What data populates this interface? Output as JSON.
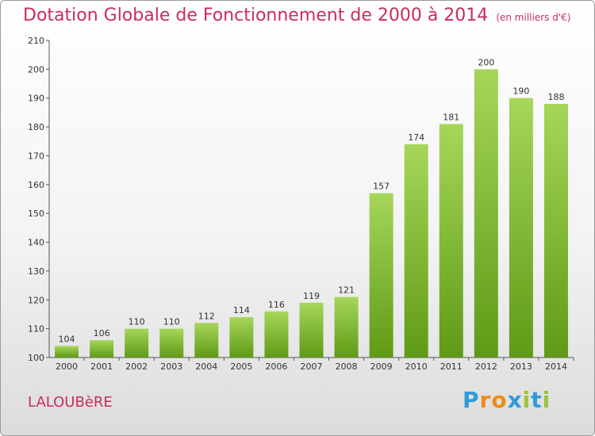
{
  "header": {
    "title": "Dotation Globale de Fonctionnement de 2000 à 2014",
    "unit": "(en milliers d'€)"
  },
  "footer": {
    "commune": "LALOUBèRE",
    "brand": "Proxiti"
  },
  "colors": {
    "title": "#cc2c5a",
    "bar_light": "#a6d65a",
    "bar_dark": "#5f9a16",
    "brand_letters": [
      "#2f9bd8",
      "#f08a1c",
      "#f08a1c",
      "#2f9bd8",
      "#9ac23c",
      "#2f9bd8",
      "#9ac23c"
    ]
  },
  "chart_data": {
    "type": "bar",
    "title": "Dotation Globale de Fonctionnement de 2000 à 2014",
    "subtitle": "(en milliers d'€)",
    "categories": [
      "2000",
      "2001",
      "2002",
      "2003",
      "2004",
      "2005",
      "2006",
      "2007",
      "2008",
      "2009",
      "2010",
      "2011",
      "2012",
      "2013",
      "2014"
    ],
    "values": [
      104,
      106,
      110,
      110,
      112,
      114,
      116,
      119,
      121,
      157,
      174,
      181,
      200,
      190,
      188
    ],
    "ylim": [
      100,
      210
    ],
    "yticks": [
      100,
      110,
      120,
      130,
      140,
      150,
      160,
      170,
      180,
      190,
      200,
      210
    ],
    "grid": false,
    "data_labels": true
  }
}
